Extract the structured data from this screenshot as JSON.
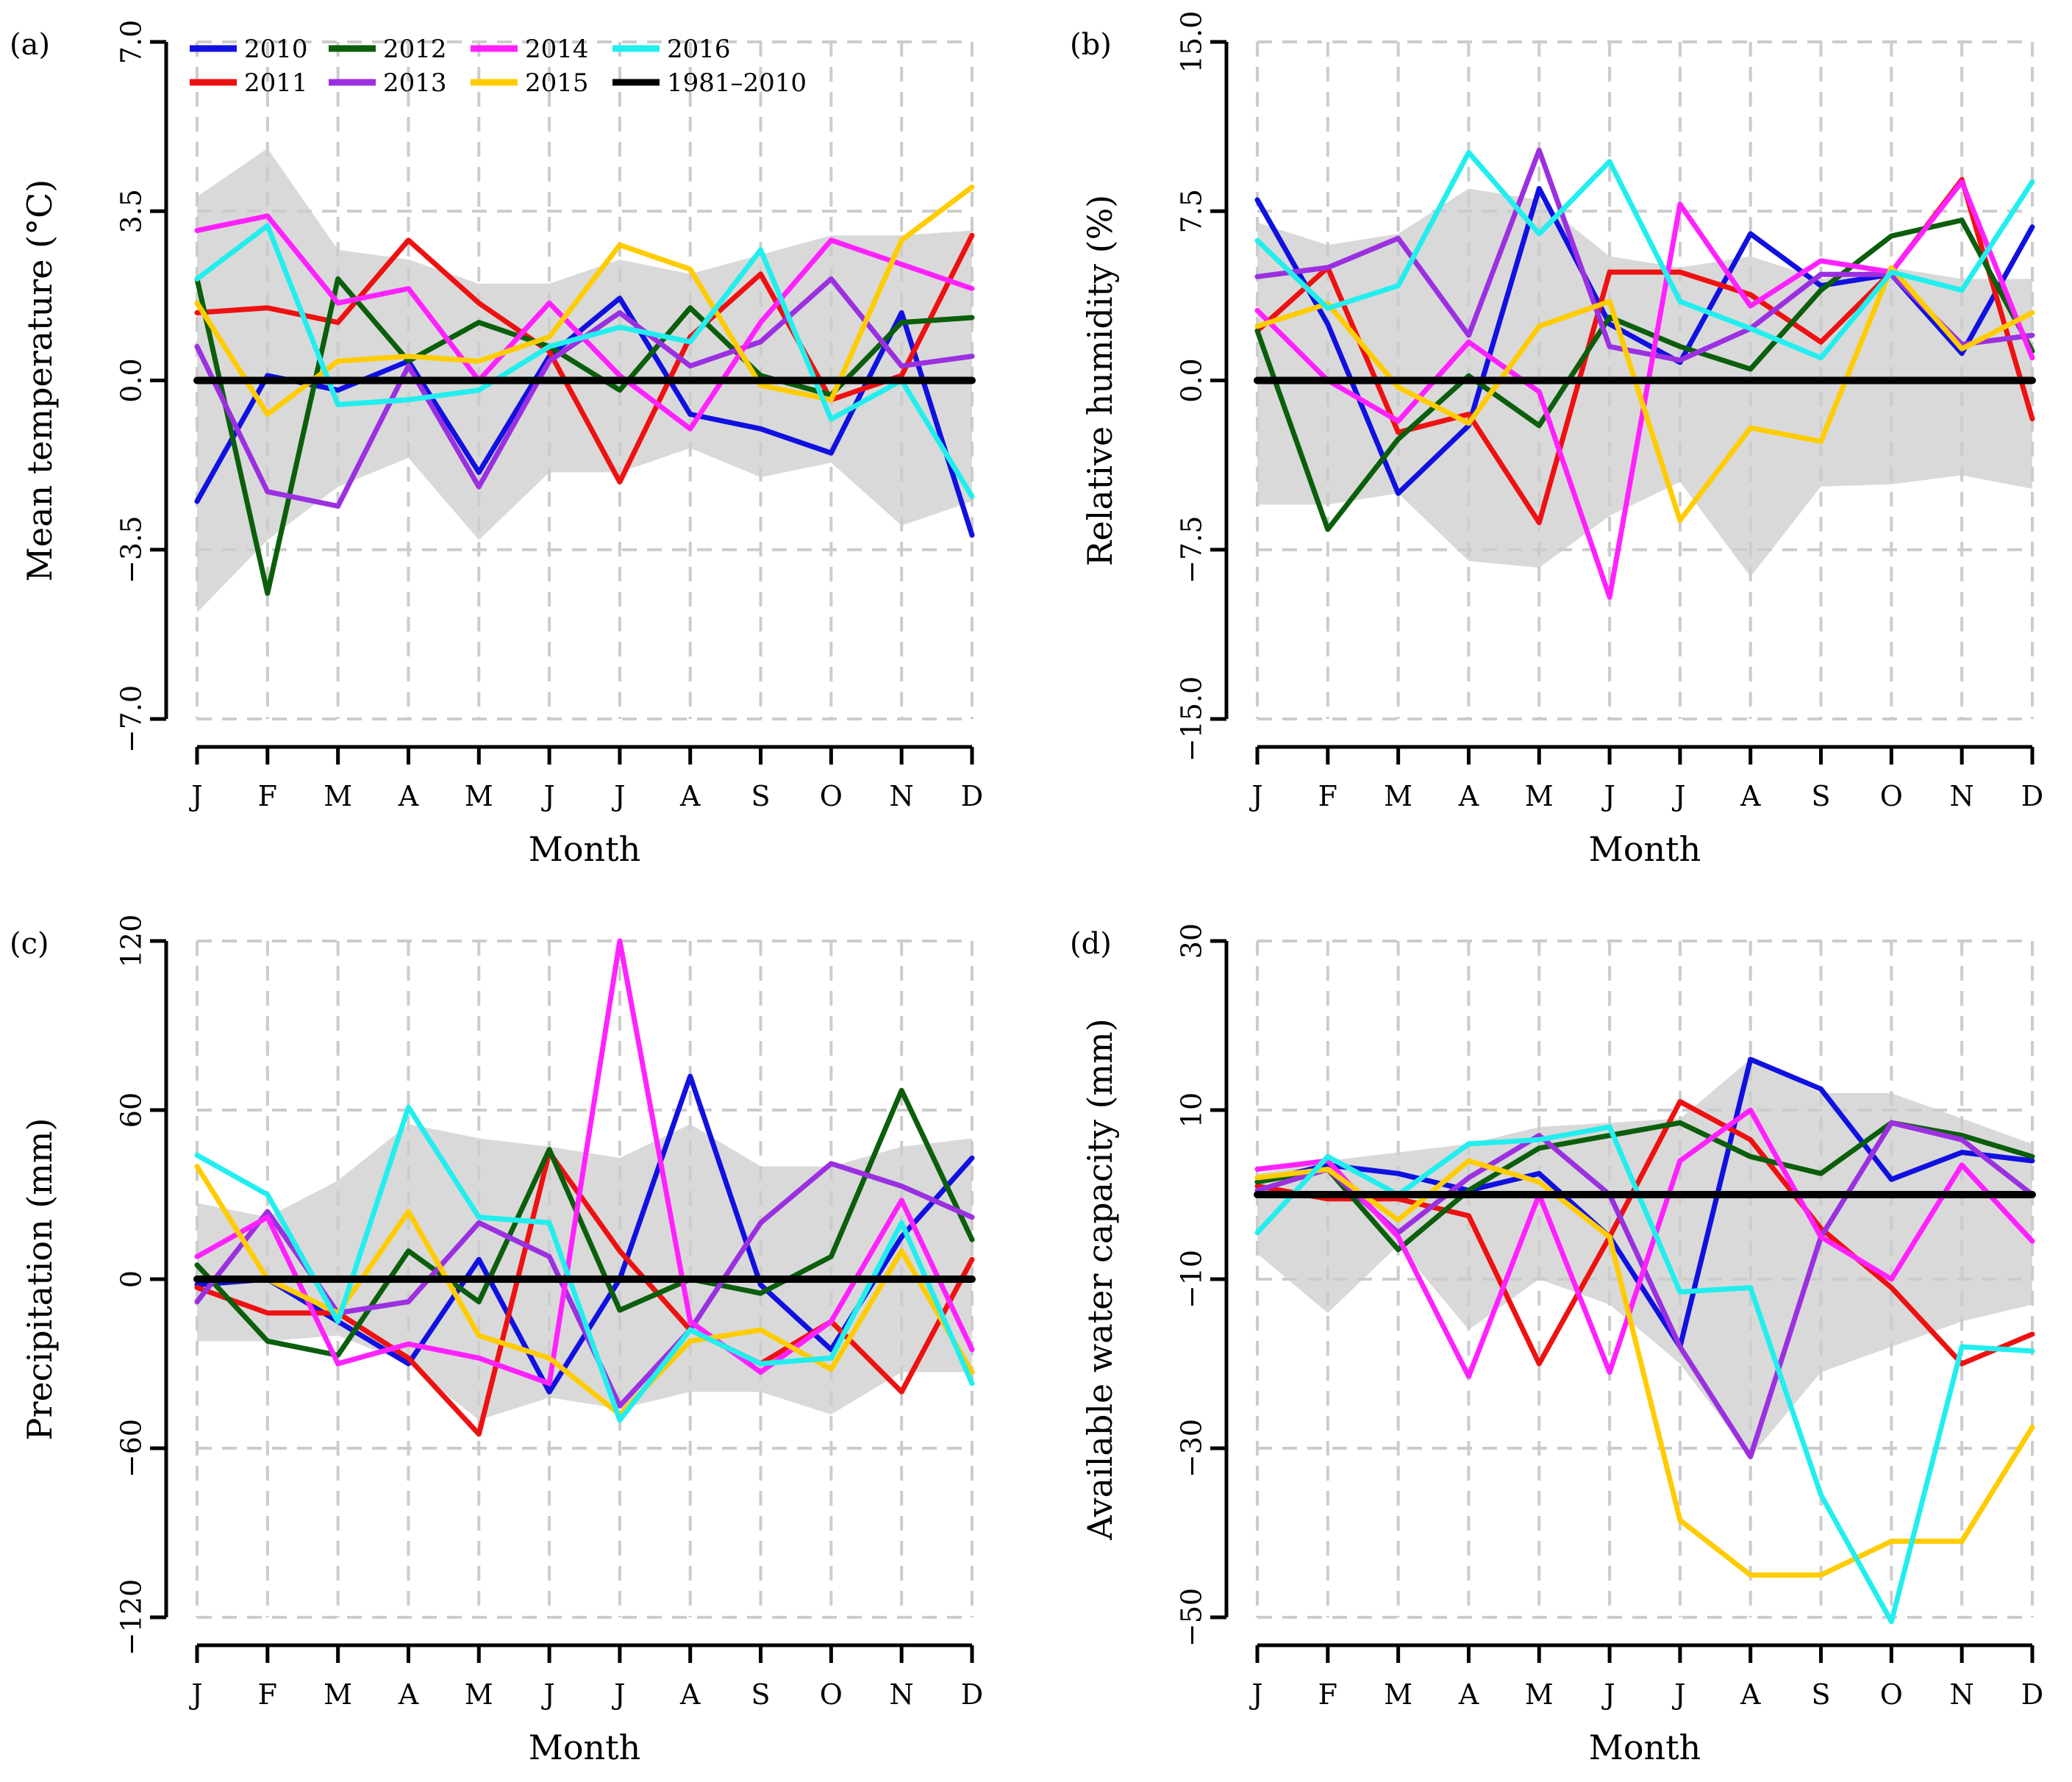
{
  "chart_data": [
    {
      "type": "line",
      "panel_label": "(a)",
      "ylabel": "Mean temperature (°C)",
      "xlabel": "Month",
      "categories": [
        "J",
        "F",
        "M",
        "A",
        "M",
        "J",
        "J",
        "A",
        "S",
        "O",
        "N",
        "D"
      ],
      "ylim": [
        -7.0,
        7.0
      ],
      "yticks": [
        "-7.0",
        "-3.5",
        "0.0",
        "3.5",
        "7.0"
      ],
      "yticks_values": [
        -7.0,
        -3.5,
        0.0,
        3.5,
        7.0
      ],
      "grid": true,
      "band": {
        "upper": [
          3.8,
          4.8,
          2.7,
          2.5,
          2.0,
          2.0,
          2.5,
          2.2,
          2.6,
          3.0,
          3.0,
          3.1
        ],
        "lower": [
          -4.8,
          -3.3,
          -2.2,
          -1.6,
          -3.3,
          -1.9,
          -1.9,
          -1.4,
          -2.0,
          -1.7,
          -3.0,
          -2.5
        ]
      },
      "series": [
        {
          "name": "2010",
          "values": [
            -2.5,
            0.1,
            -0.2,
            0.4,
            -1.9,
            0.5,
            1.7,
            -0.7,
            -1.0,
            -1.5,
            1.4,
            -3.2
          ]
        },
        {
          "name": "2011",
          "values": [
            1.4,
            1.5,
            1.2,
            2.9,
            1.6,
            0.6,
            -2.1,
            0.9,
            2.2,
            -0.4,
            0.1,
            3.0
          ]
        },
        {
          "name": "2012",
          "values": [
            2.1,
            -4.4,
            2.1,
            0.4,
            1.2,
            0.7,
            -0.2,
            1.5,
            0.1,
            -0.3,
            1.2,
            1.3
          ]
        },
        {
          "name": "2013",
          "values": [
            0.7,
            -2.3,
            -2.6,
            0.3,
            -2.2,
            0.4,
            1.4,
            0.3,
            0.8,
            2.1,
            0.3,
            0.5
          ]
        },
        {
          "name": "2014",
          "values": [
            3.1,
            3.4,
            1.6,
            1.9,
            0.0,
            1.6,
            0.1,
            -1.0,
            1.2,
            2.9,
            2.4,
            1.9
          ]
        },
        {
          "name": "2015",
          "values": [
            1.6,
            -0.7,
            0.4,
            0.5,
            0.4,
            0.9,
            2.8,
            2.3,
            -0.1,
            -0.4,
            2.9,
            4.0
          ]
        },
        {
          "name": "2016",
          "values": [
            2.1,
            3.2,
            -0.5,
            -0.4,
            -0.2,
            0.7,
            1.1,
            0.8,
            2.7,
            -0.8,
            0.0,
            -2.4
          ]
        },
        {
          "name": "1981–2010",
          "values": [
            0,
            0,
            0,
            0,
            0,
            0,
            0,
            0,
            0,
            0,
            0,
            0
          ]
        }
      ]
    },
    {
      "type": "line",
      "panel_label": "(b)",
      "ylabel": "Relative humidity (%)",
      "xlabel": "Month",
      "categories": [
        "J",
        "F",
        "M",
        "A",
        "M",
        "J",
        "J",
        "A",
        "S",
        "O",
        "N",
        "D"
      ],
      "ylim": [
        -15.0,
        15.0
      ],
      "yticks": [
        "-15.0",
        "-7.5",
        "0.0",
        "7.5",
        "15.0"
      ],
      "yticks_values": [
        -15.0,
        -7.5,
        0.0,
        7.5,
        15.0
      ],
      "grid": true,
      "band": {
        "upper": [
          7.0,
          6.0,
          6.5,
          8.5,
          8.0,
          5.5,
          5.0,
          5.5,
          4.5,
          5.0,
          4.5,
          4.5
        ],
        "lower": [
          -5.5,
          -5.5,
          -5.0,
          -8.0,
          -8.3,
          -6.0,
          -4.5,
          -8.7,
          -4.7,
          -4.6,
          -4.2,
          -4.8
        ]
      },
      "series": [
        {
          "name": "2010",
          "values": [
            8.0,
            2.5,
            -5.0,
            -2.0,
            8.5,
            2.5,
            0.8,
            6.5,
            4.2,
            4.7,
            1.2,
            6.8
          ]
        },
        {
          "name": "2011",
          "values": [
            2.2,
            5.0,
            -2.3,
            -1.5,
            -6.3,
            4.8,
            4.8,
            3.8,
            1.7,
            4.8,
            8.9,
            -1.7
          ]
        },
        {
          "name": "2012",
          "values": [
            2.2,
            -6.6,
            -2.6,
            0.2,
            -2.0,
            2.8,
            1.5,
            0.5,
            4.0,
            6.4,
            7.1,
            1.3
          ]
        },
        {
          "name": "2013",
          "values": [
            4.6,
            5.0,
            6.3,
            2.0,
            10.2,
            1.5,
            0.9,
            2.3,
            4.7,
            4.7,
            1.6,
            2.0
          ]
        },
        {
          "name": "2014",
          "values": [
            3.1,
            0.0,
            -1.8,
            1.7,
            -0.5,
            -9.6,
            7.8,
            3.3,
            5.3,
            4.8,
            8.8,
            1.0
          ]
        },
        {
          "name": "2015",
          "values": [
            2.4,
            3.4,
            -0.3,
            -1.9,
            2.4,
            3.5,
            -6.2,
            -2.1,
            -2.7,
            5.0,
            1.4,
            3.0
          ]
        },
        {
          "name": "2016",
          "values": [
            6.2,
            3.2,
            4.2,
            10.1,
            6.5,
            9.7,
            3.5,
            2.3,
            1.0,
            4.8,
            4.0,
            8.8
          ]
        },
        {
          "name": "1981–2010",
          "values": [
            0,
            0,
            0,
            0,
            0,
            0,
            0,
            0,
            0,
            0,
            0,
            0
          ]
        }
      ]
    },
    {
      "type": "line",
      "panel_label": "(c)",
      "ylabel": "Precipitation (mm)",
      "xlabel": "Month",
      "categories": [
        "J",
        "F",
        "M",
        "A",
        "M",
        "J",
        "J",
        "A",
        "S",
        "O",
        "N",
        "D"
      ],
      "ylim": [
        -120,
        120
      ],
      "yticks": [
        "-120",
        "-60",
        "0",
        "60",
        "120"
      ],
      "yticks_values": [
        -120,
        -60,
        0,
        60,
        120
      ],
      "grid": true,
      "band": {
        "upper": [
          27,
          22,
          35,
          55,
          50,
          47,
          43,
          55,
          40,
          40,
          47,
          50
        ],
        "lower": [
          -22,
          -22,
          -20,
          -30,
          -50,
          -42,
          -46,
          -40,
          -40,
          -48,
          -33,
          -33
        ]
      },
      "series": [
        {
          "name": "2010",
          "values": [
            -2,
            0,
            -15,
            -30,
            7,
            -40,
            0,
            72,
            -2,
            -25,
            15,
            43
          ]
        },
        {
          "name": "2011",
          "values": [
            -3,
            -12,
            -12,
            -28,
            -55,
            45,
            10,
            -18,
            -30,
            -15,
            -40,
            7
          ]
        },
        {
          "name": "2012",
          "values": [
            5,
            -22,
            -27,
            10,
            -8,
            46,
            -11,
            0,
            -5,
            8,
            67,
            14
          ]
        },
        {
          "name": "2013",
          "values": [
            -8,
            24,
            -12,
            -8,
            20,
            8,
            -45,
            -18,
            20,
            41,
            33,
            22
          ]
        },
        {
          "name": "2014",
          "values": [
            8,
            22,
            -30,
            -23,
            -28,
            -37,
            120,
            -15,
            -33,
            -15,
            28,
            -25
          ]
        },
        {
          "name": "2015",
          "values": [
            40,
            0,
            -12,
            24,
            -20,
            -28,
            -48,
            -22,
            -18,
            -32,
            10,
            -33
          ]
        },
        {
          "name": "2016",
          "values": [
            44,
            30,
            -15,
            61,
            22,
            20,
            -50,
            -18,
            -30,
            -28,
            20,
            -37
          ]
        },
        {
          "name": "1981–2010",
          "values": [
            0,
            0,
            0,
            0,
            0,
            0,
            0,
            0,
            0,
            0,
            0,
            0
          ]
        }
      ]
    },
    {
      "type": "line",
      "panel_label": "(d)",
      "ylabel": "Available water capacity (mm)",
      "xlabel": "Month",
      "categories": [
        "J",
        "F",
        "M",
        "A",
        "M",
        "J",
        "J",
        "A",
        "S",
        "O",
        "N",
        "D"
      ],
      "ylim": [
        -50,
        30
      ],
      "yticks": [
        "-50",
        "-30",
        "-10",
        "10",
        "30"
      ],
      "yticks_values": [
        -50,
        -30,
        -10,
        10,
        30
      ],
      "grid": true,
      "band": {
        "upper": [
          2.5,
          4.0,
          5.0,
          6.0,
          8.0,
          8.5,
          9.0,
          16.0,
          12.0,
          12.0,
          9.0,
          6.0
        ],
        "lower": [
          -7,
          -14,
          -6,
          -16,
          -10,
          -13,
          -20,
          -31,
          -21,
          -18,
          -15,
          -13
        ]
      },
      "series": [
        {
          "name": "2010",
          "values": [
            1.5,
            3.5,
            2.5,
            0.5,
            2.5,
            -5.0,
            -18.0,
            16.0,
            12.5,
            1.8,
            5.0,
            4.0
          ]
        },
        {
          "name": "2011",
          "values": [
            1.0,
            -0.5,
            -0.5,
            -2.5,
            -20.0,
            -5.0,
            11.0,
            6.5,
            -4.0,
            -11.0,
            -20.0,
            -16.5
          ]
        },
        {
          "name": "2012",
          "values": [
            1.5,
            3.0,
            -6.5,
            0.5,
            5.5,
            7.0,
            8.5,
            4.5,
            2.5,
            8.5,
            7.0,
            4.5
          ]
        },
        {
          "name": "2013",
          "values": [
            0.5,
            3.0,
            -4.5,
            2.0,
            7.0,
            0.0,
            -18.0,
            -31.0,
            -5.0,
            8.5,
            6.5,
            0.0
          ]
        },
        {
          "name": "2014",
          "values": [
            3.0,
            4.0,
            -5.0,
            -21.5,
            0.0,
            -21.0,
            4.0,
            10.0,
            -5.0,
            -10.0,
            3.5,
            -5.5
          ]
        },
        {
          "name": "2015",
          "values": [
            2.0,
            3.0,
            -3.0,
            4.0,
            1.5,
            -5.0,
            -38.5,
            -45.0,
            -45.0,
            -41.0,
            -41.0,
            -27.5
          ]
        },
        {
          "name": "2016",
          "values": [
            -4.5,
            4.5,
            0.0,
            6.0,
            6.5,
            8.0,
            -11.5,
            -11.0,
            -35.5,
            -50.5,
            -18.0,
            -18.5
          ]
        },
        {
          "name": "1981–2010",
          "values": [
            0,
            0,
            0,
            0,
            0,
            0,
            0,
            0,
            0,
            0,
            0,
            0
          ]
        }
      ]
    }
  ],
  "legend": {
    "placement": "top-left of panel (a)",
    "entries": [
      {
        "name": "2010",
        "color": "#1010e0"
      },
      {
        "name": "2011",
        "color": "#ee1111"
      },
      {
        "name": "2012",
        "color": "#0b5e0b"
      },
      {
        "name": "2013",
        "color": "#9b30e0"
      },
      {
        "name": "2014",
        "color": "#ff22ff"
      },
      {
        "name": "2015",
        "color": "#ffcc00"
      },
      {
        "name": "2016",
        "color": "#22eeee"
      },
      {
        "name": "1981–2010",
        "color": "#000000"
      }
    ]
  },
  "colors": {
    "band": "#d9d9d9",
    "grid": "#cccccc",
    "baseline": "#000000"
  }
}
